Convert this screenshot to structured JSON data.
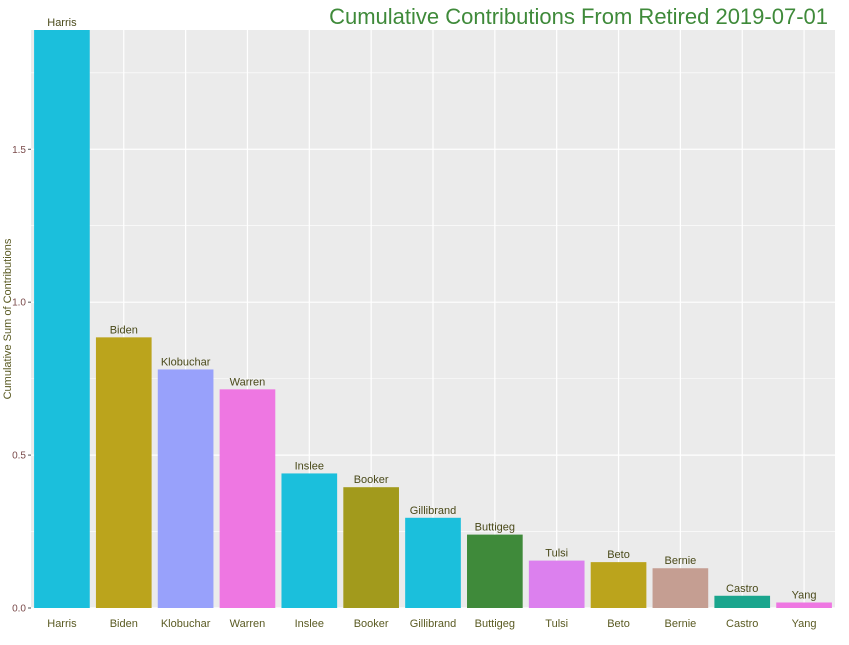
{
  "chart_data": {
    "type": "bar",
    "title": "Cumulative Contributions From  Retired  2019-07-01",
    "xlabel": "",
    "ylabel": "Cumulative Sum of Contributions",
    "categories": [
      "Harris",
      "Biden",
      "Klobuchar",
      "Warren",
      "Inslee",
      "Booker",
      "Gillibrand",
      "Buttigeg",
      "Tulsi",
      "Beto",
      "Bernie",
      "Castro",
      "Yang"
    ],
    "values": [
      1.89,
      0.885,
      0.78,
      0.715,
      0.44,
      0.395,
      0.295,
      0.24,
      0.155,
      0.15,
      0.13,
      0.04,
      0.018
    ],
    "data_labels": [
      "Harris",
      "Biden",
      "Klobuchar",
      "Warren",
      "Inslee",
      "Booker",
      "Gillibrand",
      "Buttigeg",
      "Tulsi",
      "Beto",
      "Bernie",
      "Castro",
      "Yang"
    ],
    "colors": [
      "#1bbfdc",
      "#bba41c",
      "#98a1fb",
      "#ee77e2",
      "#1bbfdc",
      "#a29a1c",
      "#1bbfdc",
      "#3f8a3a",
      "#dc80ee",
      "#bba41c",
      "#c59e92",
      "#1aa58d",
      "#ee77e2"
    ],
    "yticks": [
      0.0,
      0.5,
      1.0,
      1.5
    ],
    "ytick_labels": [
      "0.0",
      "0.5",
      "1.0",
      "1.5"
    ],
    "ylim": [
      0,
      1.89
    ],
    "grid": true,
    "legend": "none",
    "title_color": "#3f8a3a",
    "panel_background": "#ebebeb",
    "grid_color": "#ffffff"
  }
}
